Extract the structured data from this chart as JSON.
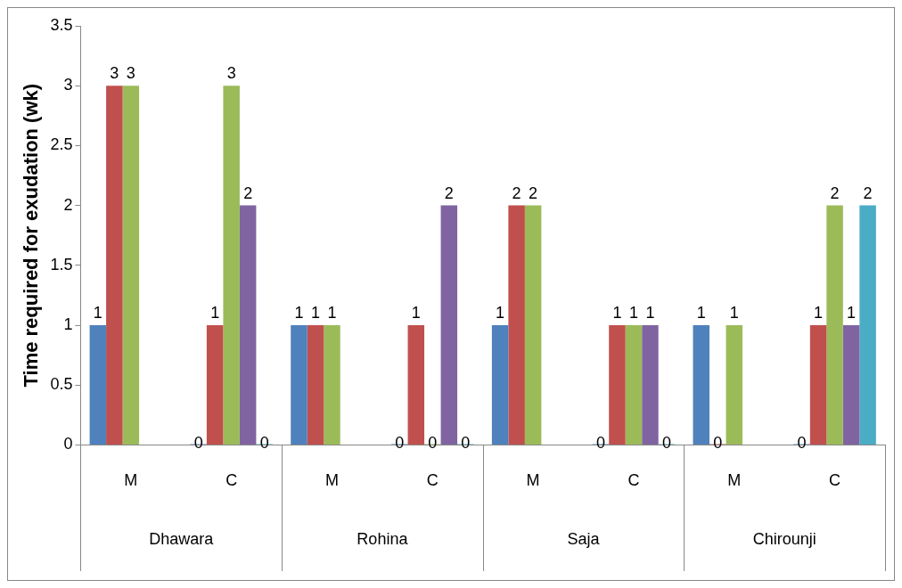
{
  "chart_data": {
    "type": "bar",
    "ylabel": "Time required for exudation (wk)",
    "categories": [
      "M",
      "C",
      "M",
      "C",
      "M",
      "C",
      "M",
      "C"
    ],
    "annotations": [
      "Dhawara",
      "Rohina",
      "Saja",
      "Chirounji"
    ],
    "series": [
      {
        "color": "#4f81bd",
        "values": [
          1,
          0,
          1,
          0,
          1,
          0,
          1,
          0
        ]
      },
      {
        "color": "#c0504d",
        "values": [
          3,
          1,
          1,
          1,
          2,
          1,
          0,
          1
        ]
      },
      {
        "color": "#9bbb59",
        "values": [
          3,
          3,
          1,
          0,
          2,
          1,
          1,
          2
        ]
      },
      {
        "color": "#8064a2",
        "values": [
          null,
          2,
          null,
          2,
          null,
          1,
          null,
          1
        ]
      },
      {
        "color": "#4bacc6",
        "values": [
          null,
          0,
          null,
          0,
          null,
          0,
          null,
          2
        ]
      }
    ],
    "ylim": [
      0,
      3.5
    ],
    "yticks": [
      0,
      0.5,
      1,
      1.5,
      2,
      2.5,
      3,
      3.5
    ],
    "grid": false,
    "legend": false,
    "data_labels": true
  }
}
